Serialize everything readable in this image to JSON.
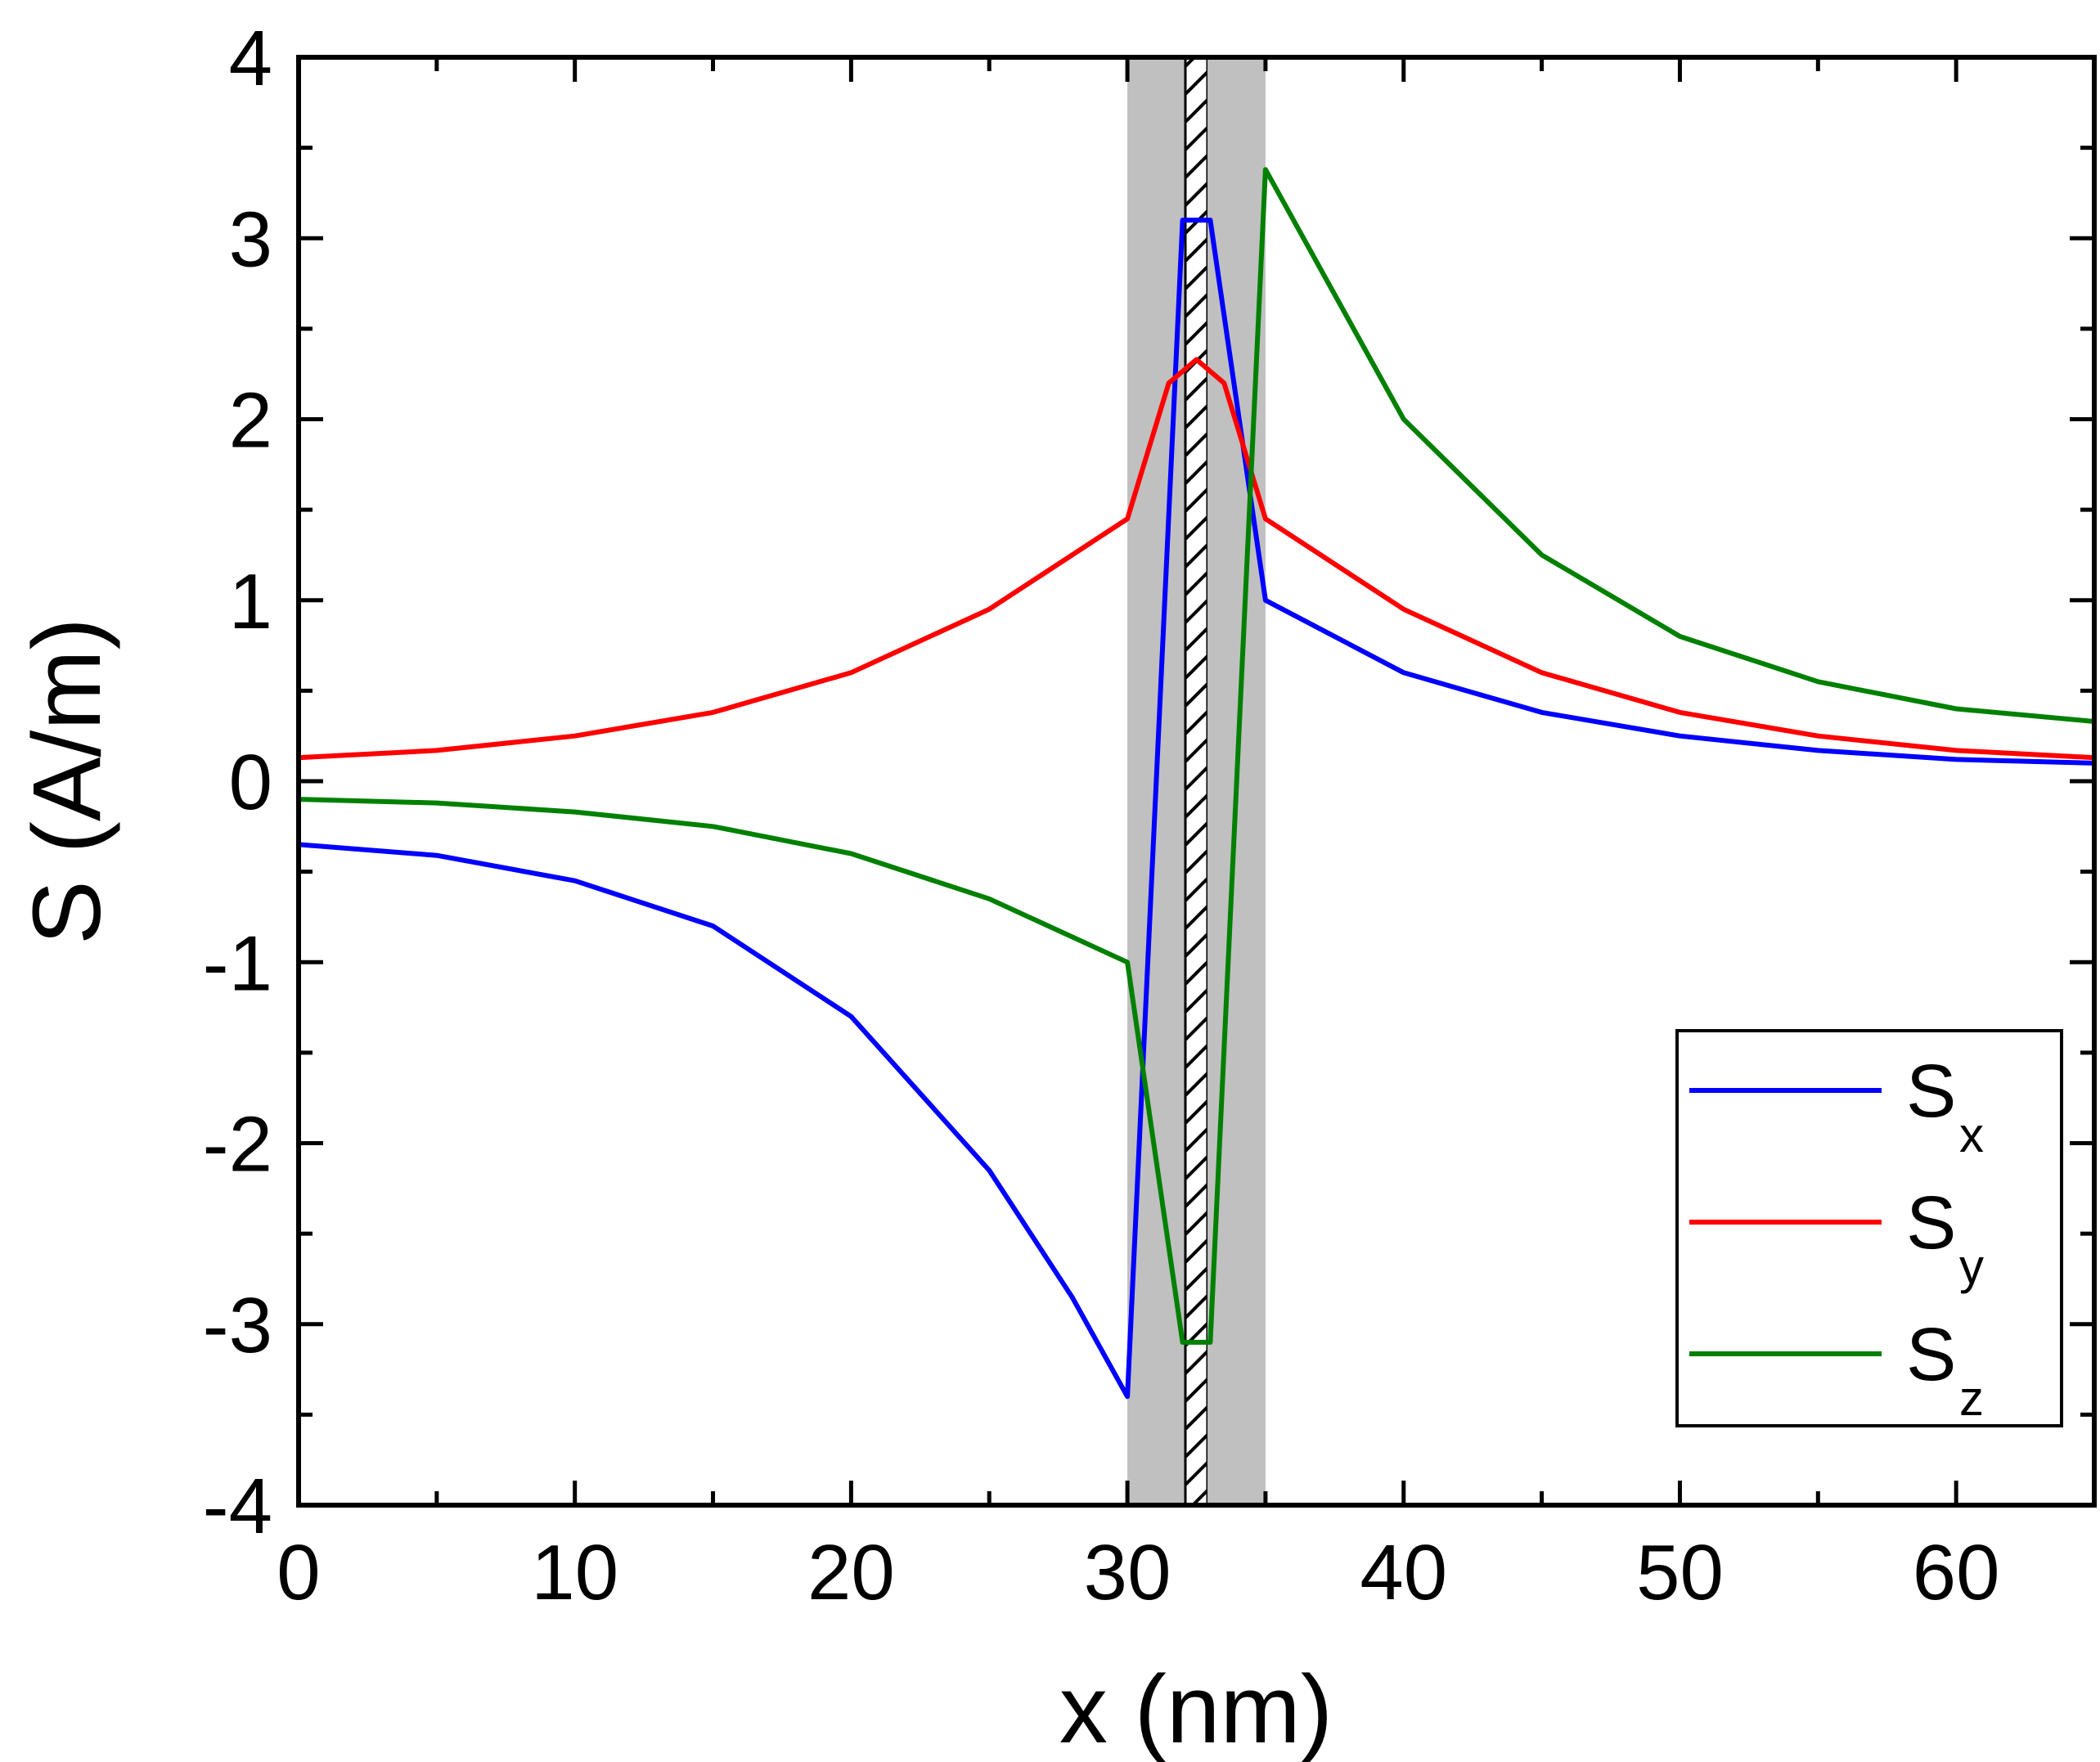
{
  "chart_data": {
    "type": "line",
    "title": "",
    "xlabel": "x (nm)",
    "ylabel": "S (A/m)",
    "xlim": [
      0,
      65
    ],
    "ylim": [
      -4,
      4
    ],
    "grid": false,
    "x_ticks": [
      0,
      10,
      20,
      30,
      40,
      50,
      60
    ],
    "y_ticks": [
      -4,
      -3,
      -2,
      -1,
      0,
      1,
      2,
      3,
      4
    ],
    "x_tick_labels": [
      "0",
      "10",
      "20",
      "30",
      "40",
      "50",
      "60"
    ],
    "y_tick_labels": [
      "-4",
      "-3",
      "-2",
      "-1",
      "0",
      "1",
      "2",
      "3",
      "4"
    ],
    "x_minor_step": 5,
    "y_minor_step": 0.5,
    "legend_position": "bottom-right",
    "shaded_regions": [
      {
        "x0": 30,
        "x1": 32.1,
        "style": "solid",
        "color": "#c0c0c0"
      },
      {
        "x0": 32.1,
        "x1": 32.9,
        "style": "hatched",
        "color": "#000000"
      },
      {
        "x0": 32.9,
        "x1": 35,
        "style": "solid",
        "color": "#c0c0c0"
      }
    ],
    "series": [
      {
        "name": "S",
        "subscript": "x",
        "color": "#0000ff",
        "x": [
          0,
          5,
          10,
          15,
          20,
          25,
          28,
          30,
          32,
          33,
          35,
          40,
          45,
          50,
          55,
          60,
          65
        ],
        "y": [
          -0.35,
          -0.41,
          -0.55,
          -0.8,
          -1.3,
          -2.15,
          -2.85,
          -3.4,
          3.1,
          3.1,
          1.0,
          0.6,
          0.38,
          0.25,
          0.17,
          0.12,
          0.1
        ]
      },
      {
        "name": "S",
        "subscript": "y",
        "color": "#ff0000",
        "x": [
          0,
          5,
          10,
          15,
          20,
          25,
          30,
          31.5,
          32.5,
          33.5,
          35,
          40,
          45,
          50,
          55,
          60,
          65
        ],
        "y": [
          0.13,
          0.17,
          0.25,
          0.38,
          0.6,
          0.95,
          1.45,
          2.2,
          2.33,
          2.2,
          1.45,
          0.95,
          0.6,
          0.38,
          0.25,
          0.17,
          0.13
        ]
      },
      {
        "name": "S",
        "subscript": "z",
        "color": "#008000",
        "x": [
          0,
          5,
          10,
          15,
          20,
          25,
          30,
          32,
          33,
          35,
          40,
          45,
          50,
          55,
          60,
          65
        ],
        "y": [
          -0.1,
          -0.12,
          -0.17,
          -0.25,
          -0.4,
          -0.65,
          -1.0,
          -3.1,
          -3.1,
          3.38,
          2.0,
          1.25,
          0.8,
          0.55,
          0.4,
          0.33
        ]
      }
    ]
  }
}
